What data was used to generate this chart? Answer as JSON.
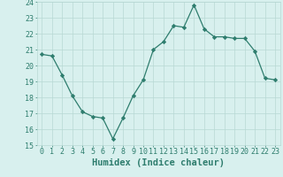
{
  "x": [
    0,
    1,
    2,
    3,
    4,
    5,
    6,
    7,
    8,
    9,
    10,
    11,
    12,
    13,
    14,
    15,
    16,
    17,
    18,
    19,
    20,
    21,
    22,
    23
  ],
  "y": [
    20.7,
    20.6,
    19.4,
    18.1,
    17.1,
    16.8,
    16.7,
    15.4,
    16.7,
    18.1,
    19.1,
    21.0,
    21.5,
    22.5,
    22.4,
    23.8,
    22.3,
    21.8,
    21.8,
    21.7,
    21.7,
    20.9,
    19.2,
    19.1
  ],
  "line_color": "#2e7d6e",
  "marker": "D",
  "marker_size": 2.2,
  "bg_color": "#d8f0ee",
  "grid_color": "#b8d8d4",
  "xlabel": "Humidex (Indice chaleur)",
  "ylim": [
    15,
    24
  ],
  "yticks": [
    15,
    16,
    17,
    18,
    19,
    20,
    21,
    22,
    23,
    24
  ],
  "xticks": [
    0,
    1,
    2,
    3,
    4,
    5,
    6,
    7,
    8,
    9,
    10,
    11,
    12,
    13,
    14,
    15,
    16,
    17,
    18,
    19,
    20,
    21,
    22,
    23
  ],
  "tick_fontsize": 6.0,
  "xlabel_fontsize": 7.5
}
